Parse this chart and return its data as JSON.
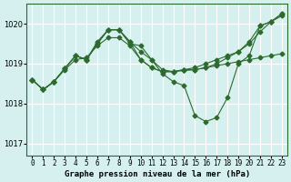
{
  "background_color": "#d6f0f0",
  "grid_color": "#ffffff",
  "line_color": "#2d6a2d",
  "x_labels": [
    "0",
    "1",
    "2",
    "3",
    "4",
    "5",
    "6",
    "7",
    "8",
    "9",
    "10",
    "11",
    "12",
    "13",
    "14",
    "15",
    "16",
    "17",
    "18",
    "19",
    "20",
    "21",
    "22",
    "23"
  ],
  "xlabel": "Graphe pression niveau de la mer (hPa)",
  "ylim": [
    1016.7,
    1020.5
  ],
  "yticks": [
    1017,
    1018,
    1019,
    1020
  ],
  "series": {
    "line1": [
      1018.6,
      1018.35,
      1018.55,
      1018.85,
      1019.1,
      1019.15,
      1019.45,
      1019.65,
      1019.65,
      1019.45,
      1019.1,
      1018.9,
      1018.8,
      1018.8,
      1018.85,
      1018.85,
      1018.9,
      1018.95,
      1019.0,
      1019.05,
      1019.1,
      1019.15,
      1019.2,
      1019.25
    ],
    "line2": [
      1018.6,
      1018.35,
      1018.55,
      1018.88,
      1019.2,
      1019.1,
      1019.5,
      1019.85,
      1019.85,
      1019.55,
      1019.1,
      1018.9,
      1018.8,
      1018.8,
      1018.85,
      1018.9,
      1019.0,
      1019.1,
      1019.2,
      1019.3,
      1019.55,
      1019.95,
      1020.05,
      1020.2
    ],
    "line3": [
      1018.6,
      1018.35,
      1018.55,
      1018.88,
      1019.2,
      1019.1,
      1019.5,
      1019.85,
      1019.85,
      1019.5,
      1019.45,
      1019.1,
      1018.75,
      1018.55,
      1018.45,
      1017.7,
      1017.55,
      1017.65,
      1018.15,
      1019.0,
      1019.2,
      1019.95,
      1020.05,
      1020.25
    ],
    "line4": [
      1018.6,
      1018.35,
      1018.55,
      1018.88,
      1019.2,
      1019.1,
      1019.55,
      1019.85,
      1019.85,
      1019.55,
      1019.3,
      1019.1,
      1018.85,
      1018.8,
      1018.83,
      1018.85,
      1018.9,
      1019.0,
      1019.15,
      1019.3,
      1019.5,
      1019.8,
      1020.05,
      1020.25
    ]
  }
}
